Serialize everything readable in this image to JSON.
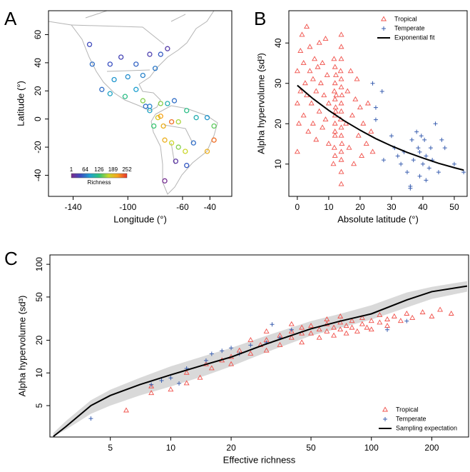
{
  "chart_data": [
    {
      "type": "map",
      "panel_label": "A",
      "xlabel": "Longitude (°)",
      "ylabel": "Latitude (°)",
      "x": [
        -128,
        -126,
        -113,
        -105,
        -94,
        -84,
        -76,
        -71,
        -80,
        -89,
        -100,
        -110,
        -119,
        -113,
        -102,
        -94,
        -89,
        -84,
        -87,
        -84,
        -76,
        -71,
        -66,
        -78,
        -76,
        -81,
        -74,
        -68,
        -63,
        -57,
        -50,
        -42,
        -37,
        -73,
        -68,
        -63,
        -58,
        -52,
        -42,
        -37,
        -57,
        -65,
        -73
      ],
      "y": [
        53,
        39,
        39,
        44,
        39,
        46,
        46,
        50,
        36,
        31,
        30,
        28,
        21,
        18,
        16,
        21,
        13,
        9,
        9,
        6,
        11,
        11,
        13,
        1,
        2,
        -5,
        -5,
        -2,
        -2,
        6,
        1,
        1,
        -5,
        -15,
        -17,
        -20,
        -23,
        -17,
        -23,
        -15,
        -33,
        -30,
        -44
      ],
      "richness": [
        40,
        60,
        45,
        35,
        55,
        30,
        50,
        25,
        65,
        70,
        75,
        80,
        60,
        90,
        120,
        85,
        150,
        70,
        60,
        90,
        150,
        100,
        60,
        180,
        210,
        130,
        200,
        230,
        160,
        120,
        100,
        80,
        140,
        200,
        170,
        150,
        170,
        60,
        200,
        230,
        50,
        20,
        5
      ],
      "xlim": [
        -158,
        -24
      ],
      "ylim": [
        -55,
        77
      ],
      "xticks": [
        -140,
        -100,
        -60,
        -40
      ],
      "yticks": [
        -40,
        -20,
        0,
        20,
        40,
        60
      ],
      "colorbar": {
        "label": "Richness",
        "ticks": [
          1,
          64,
          126,
          189,
          252
        ],
        "colors": [
          "#7b2a8c",
          "#3b4cc0",
          "#1fa0d0",
          "#2ec37a",
          "#c8d82a",
          "#f7a21b",
          "#e8322b"
        ]
      }
    },
    {
      "type": "scatter",
      "panel_label": "B",
      "xlabel": "Absolute latitude (°)",
      "ylabel": "Alpha hypervolume (sd³)",
      "xlim": [
        -2.7,
        54.1
      ],
      "ylim": [
        2,
        48
      ],
      "xticks": [
        0,
        10,
        20,
        30,
        40,
        50
      ],
      "yticks": [
        10,
        20,
        30,
        40
      ],
      "legend": "top-right",
      "series": [
        {
          "name": "Tropical",
          "color": "#f0504a",
          "marker": "triangle",
          "x": [
            0,
            0,
            0,
            0.5,
            1,
            1,
            1.5,
            2,
            2,
            2.5,
            3,
            3,
            3.5,
            4,
            4,
            4.5,
            5,
            5,
            5.5,
            6,
            6,
            6.5,
            7,
            7,
            7.5,
            8,
            8,
            8.5,
            9,
            9,
            9.5,
            10,
            10,
            11.5,
            11.8,
            12,
            12,
            12.2,
            12,
            11.8,
            12,
            12.3,
            12,
            11.7,
            12,
            12.2,
            12,
            12,
            12.4,
            14,
            14,
            14,
            14,
            14.2,
            14,
            14,
            13.8,
            14,
            14,
            14.2,
            14,
            14,
            13.8,
            14,
            14,
            14,
            15.5,
            16,
            16.5,
            17,
            17.5,
            18,
            18.5,
            19,
            19.5,
            20,
            20.5,
            21,
            22,
            22.5,
            23.5,
            24
          ],
          "values": [
            13,
            25,
            33,
            20,
            38,
            28,
            42,
            35,
            22,
            30,
            44,
            27,
            18,
            33,
            39,
            25,
            31,
            20,
            36,
            28,
            16,
            34,
            40,
            23,
            30,
            19,
            35,
            27,
            41,
            21,
            32,
            25,
            15,
            10,
            14,
            17,
            20,
            23,
            26,
            28,
            30,
            32,
            34,
            36,
            12,
            24,
            22,
            18,
            27,
            5,
            8,
            11,
            13,
            15,
            17,
            19,
            21,
            23,
            25,
            27,
            29,
            31,
            33,
            36,
            39,
            42,
            20,
            28,
            14,
            33,
            22,
            10,
            26,
            31,
            17,
            24,
            12,
            20,
            15,
            25,
            18,
            13
          ]
        },
        {
          "name": "Temperate",
          "color": "#3a5fb0",
          "marker": "plus",
          "x": [
            24,
            25,
            27,
            27.5,
            30,
            31,
            32,
            33,
            34,
            35,
            36,
            36.5,
            37,
            38,
            38.5,
            39,
            39,
            39.5,
            40,
            40.5,
            41,
            41,
            42,
            42.5,
            43,
            44,
            45,
            46,
            47,
            50,
            53,
            36,
            25
          ],
          "values": [
            30,
            21,
            28,
            11,
            17,
            14,
            12,
            10,
            13,
            8,
            4.5,
            16,
            11,
            18,
            14,
            7,
            13,
            17,
            10,
            16,
            6,
            12,
            9,
            14,
            11,
            20,
            8,
            16,
            14,
            10,
            8,
            4,
            24
          ]
        },
        {
          "name": "Exponential fit",
          "color": "#000000",
          "marker": "line",
          "x": [
            0,
            5,
            10,
            15,
            20,
            25,
            30,
            35,
            40,
            45,
            50,
            53
          ],
          "values": [
            29.5,
            26.2,
            23.3,
            20.7,
            18.4,
            16.3,
            14.5,
            12.9,
            11.5,
            10.2,
            9.1,
            8.5
          ]
        }
      ]
    },
    {
      "type": "scatter",
      "panel_label": "C",
      "xlabel": "Effective richness",
      "ylabel": "Alpha hypervolume (sd³)",
      "log_x": true,
      "log_y": true,
      "xlim": [
        2.5,
        305
      ],
      "ylim": [
        2.57,
        122
      ],
      "xticks": [
        5,
        10,
        20,
        50,
        100,
        200
      ],
      "yticks": [
        5,
        10,
        20,
        50,
        100
      ],
      "legend": "bottom-right",
      "band": {
        "color": "#d9d9d9",
        "x": [
          2.6,
          3,
          4,
          5,
          7,
          10,
          15,
          20,
          30,
          50,
          70,
          100,
          150,
          200,
          300
        ],
        "lower": [
          2.6,
          3,
          4.2,
          5,
          6.2,
          7.5,
          9.5,
          11.5,
          15.5,
          22,
          26,
          31,
          40,
          48,
          56
        ],
        "upper": [
          2.8,
          3.6,
          5.6,
          7,
          9,
          11.5,
          14.5,
          17,
          22,
          30,
          35,
          42,
          55,
          62,
          70
        ]
      },
      "series": [
        {
          "name": "Tropical",
          "color": "#f0504a",
          "marker": "triangle",
          "x": [
            6,
            8,
            8,
            10,
            12,
            12,
            14,
            15,
            16,
            18,
            20,
            20,
            22,
            25,
            28,
            30,
            30,
            35,
            35,
            40,
            40,
            45,
            45,
            50,
            50,
            55,
            55,
            60,
            60,
            65,
            65,
            70,
            70,
            75,
            75,
            80,
            80,
            85,
            90,
            90,
            95,
            100,
            100,
            110,
            110,
            120,
            120,
            130,
            140,
            150,
            160,
            180,
            200,
            220,
            250,
            40,
            60,
            45,
            30,
            25,
            70
          ],
          "values": [
            4.5,
            7.5,
            6.5,
            7,
            8,
            10,
            9,
            12,
            11,
            13,
            14,
            12,
            16,
            15,
            18,
            20,
            16,
            22,
            18,
            21,
            24,
            19,
            26,
            23,
            27,
            21,
            25,
            24,
            28,
            22,
            26,
            25,
            29,
            23,
            27,
            26,
            30,
            24,
            28,
            32,
            26,
            30,
            25,
            29,
            34,
            31,
            27,
            33,
            30,
            35,
            32,
            36,
            33,
            38,
            35,
            28,
            31,
            23,
            24,
            20,
            33
          ]
        },
        {
          "name": "Temperate",
          "color": "#3a5fb0",
          "marker": "plus",
          "x": [
            4,
            8,
            9,
            10,
            12,
            15,
            16,
            18,
            20,
            22,
            25,
            30,
            32,
            35,
            40,
            120,
            150,
            11
          ],
          "values": [
            3.8,
            7.8,
            8.5,
            9,
            11,
            13,
            15,
            16,
            17,
            15,
            18,
            19,
            28,
            21,
            25,
            25,
            30,
            8
          ]
        },
        {
          "name": "Sampling expectation",
          "color": "#000000",
          "marker": "line",
          "x": [
            2.6,
            3,
            4,
            5,
            7,
            10,
            15,
            20,
            30,
            50,
            70,
            100,
            150,
            200,
            300
          ],
          "values": [
            2.6,
            3.2,
            5,
            6.2,
            7.8,
            9.6,
            12,
            14,
            18.5,
            25.5,
            30,
            35,
            47,
            56,
            63
          ]
        }
      ]
    }
  ]
}
